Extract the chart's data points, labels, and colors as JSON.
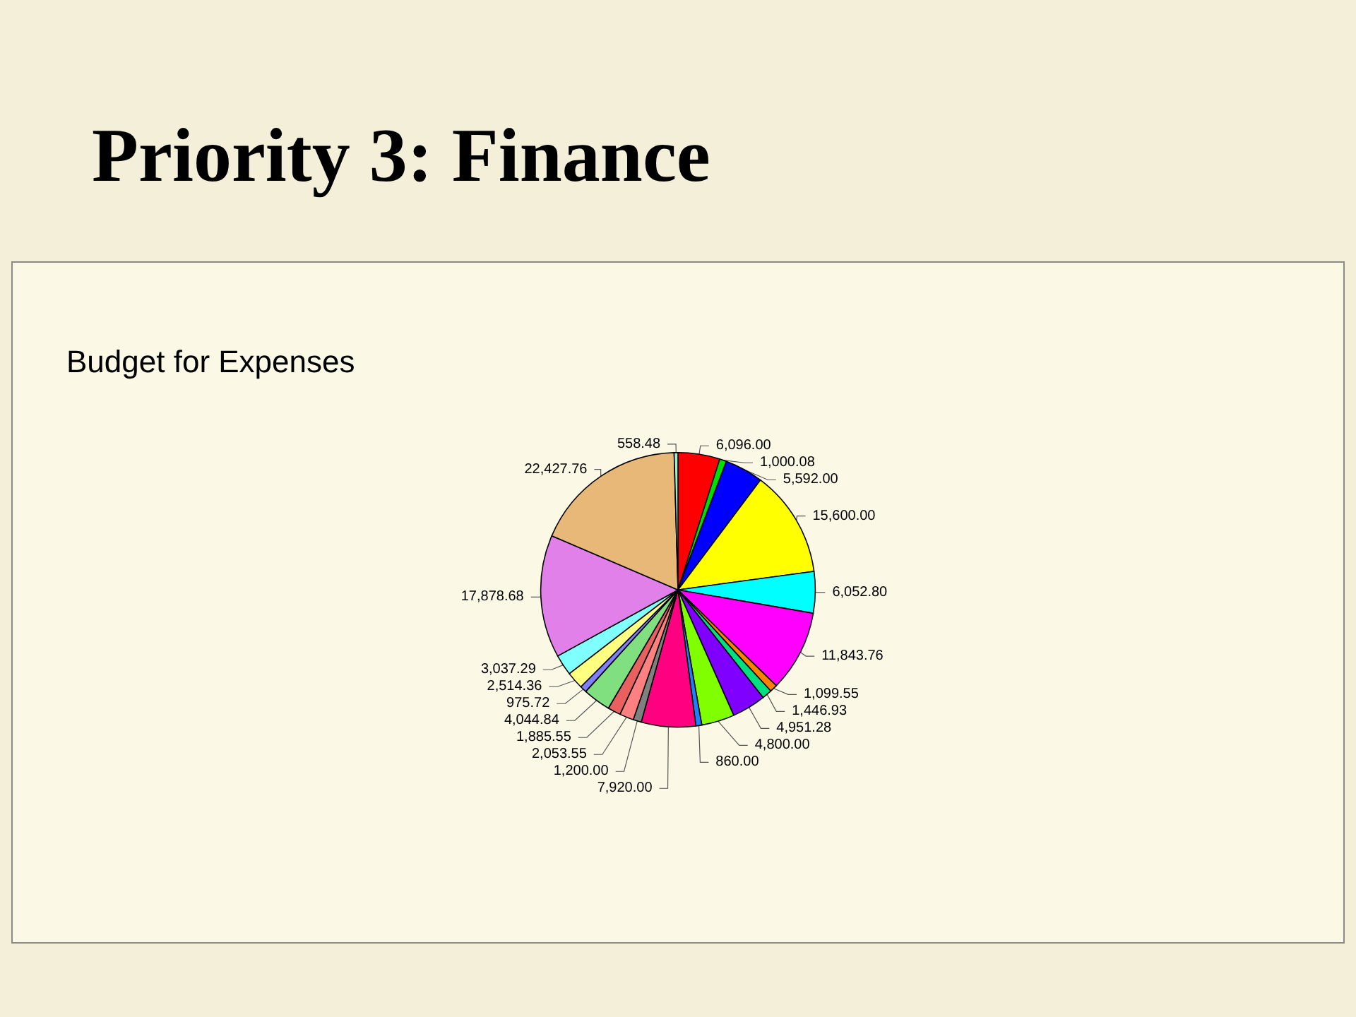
{
  "chart_data": {
    "type": "pie",
    "title": "Priority 3: Finance",
    "subtitle": "Budget for Expenses",
    "categories": [
      null,
      null,
      null,
      null,
      null,
      null,
      null,
      null,
      null,
      null,
      null,
      null,
      null,
      null,
      null,
      null,
      null,
      null,
      null,
      null,
      null,
      null
    ],
    "values": [
      6096.0,
      1000.08,
      5592.0,
      15600.0,
      6052.8,
      11843.76,
      1099.55,
      1446.93,
      4951.28,
      4800.0,
      860.0,
      7920.0,
      1200.0,
      2053.55,
      1885.55,
      4044.84,
      975.72,
      2514.36,
      3037.29,
      17878.68,
      22427.76,
      558.48
    ],
    "value_labels": [
      "6,096.00",
      "1,000.08",
      "5,592.00",
      "15,600.00",
      "6,052.80",
      "11,843.76",
      "1,099.55",
      "1,446.93",
      "4,951.28",
      "4,800.00",
      "860.00",
      "7,920.00",
      "1,200.00",
      "2,053.55",
      "1,885.55",
      "4,044.84",
      "975.72",
      "2,514.36",
      "3,037.29",
      "17,878.68",
      "22,427.76",
      "558.48"
    ],
    "colors": [
      "#ff0000",
      "#00e000",
      "#0000ff",
      "#ffff00",
      "#00ffff",
      "#ff00ff",
      "#ff8000",
      "#00e080",
      "#8000ff",
      "#80ff00",
      "#1e80ff",
      "#ff0080",
      "#808080",
      "#ff8080",
      "#e86060",
      "#80e080",
      "#8080ff",
      "#ffff80",
      "#80ffff",
      "#e080e8",
      "#e8b878",
      "#a0f0d0"
    ]
  }
}
